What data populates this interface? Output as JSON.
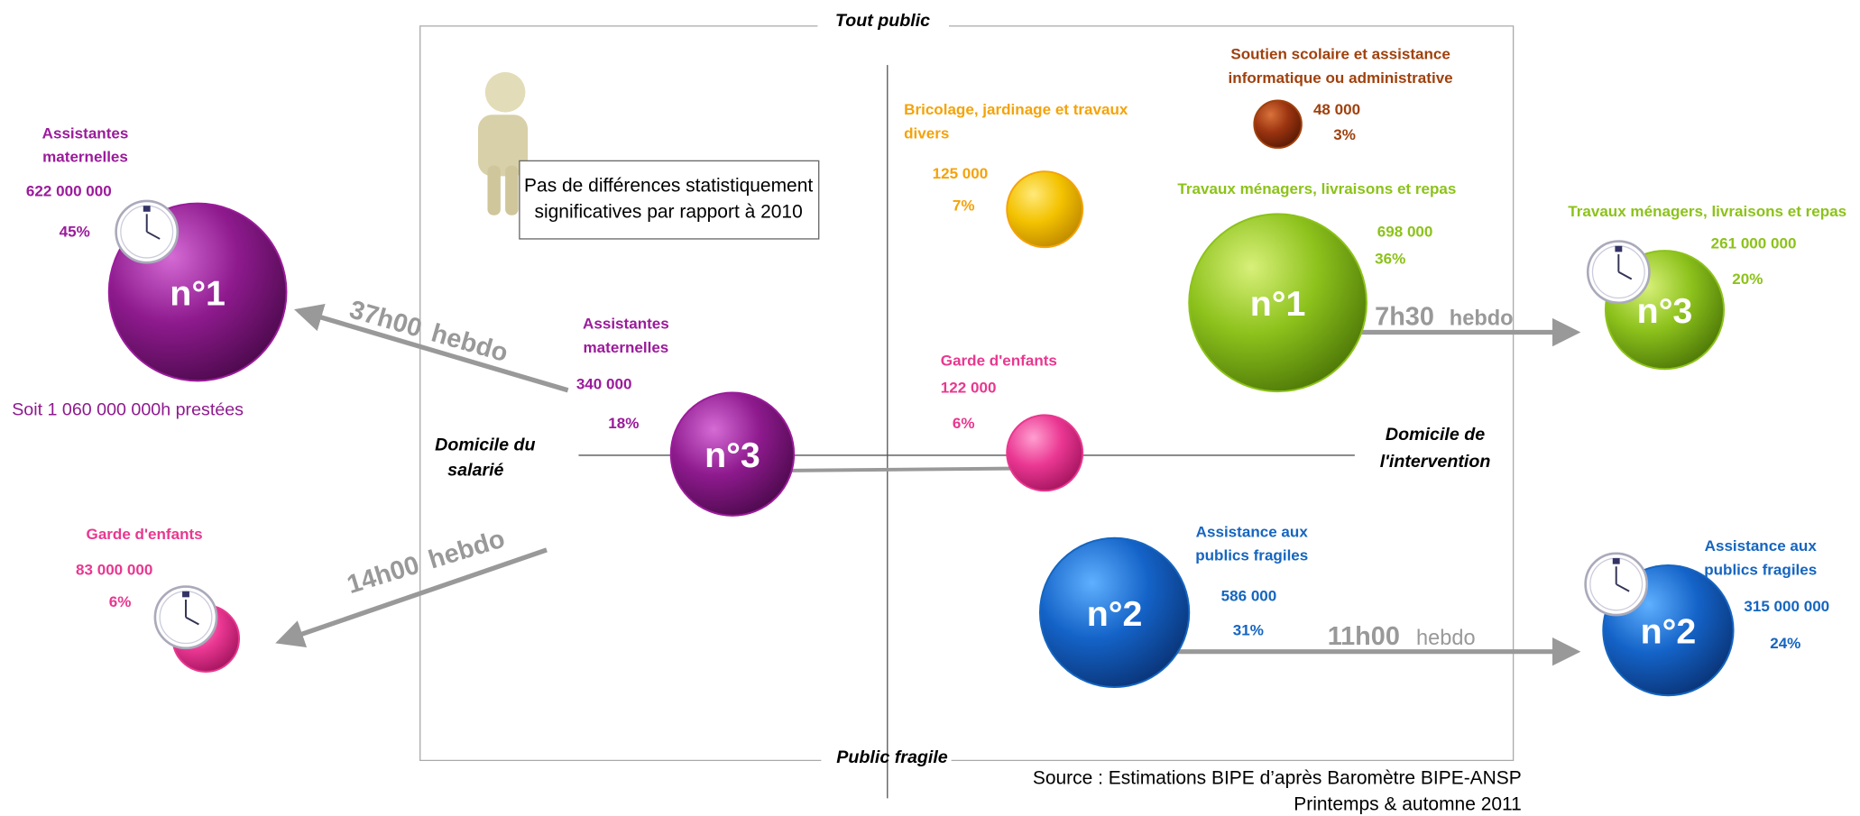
{
  "axes": {
    "top": "Tout public",
    "bottom": "Public fragile",
    "left": [
      "Domicile du",
      "salarié"
    ],
    "right": [
      "Domicile de",
      "l'intervention"
    ]
  },
  "note": [
    "Pas de différences statistiquement",
    "significatives par rapport à 2010"
  ],
  "source": [
    "Source : Estimations BIPE d’après Baromètre BIPE-ANSP",
    "Printemps & automne  2011"
  ],
  "total_hours": "Soit 1 060 000 000h prestées",
  "bubbles": [
    {
      "label": [
        "Assistantes",
        "maternelles"
      ],
      "count": "340 000",
      "share": "18%",
      "rank": "n°3"
    },
    {
      "label": [
        "Garde d'enfants"
      ],
      "count": "122 000",
      "share": "6%"
    },
    {
      "label": [
        "Bricolage, jardinage et travaux",
        "divers"
      ],
      "count": "125 000",
      "share": "7%"
    },
    {
      "label": [
        "Soutien scolaire et assistance",
        "informatique ou administrative"
      ],
      "count": "48 000",
      "share": "3%"
    },
    {
      "label": [
        "Travaux ménagers, livraisons et repas"
      ],
      "count": "698 000",
      "share": "36%",
      "rank": "n°1"
    },
    {
      "label": [
        "Assistance aux",
        "publics fragiles"
      ],
      "count": "586 000",
      "share": "31%",
      "rank": "n°2"
    }
  ],
  "outer_bubbles": [
    {
      "label": [
        "Assistantes",
        "maternelles"
      ],
      "count": "622 000 000",
      "share": "45%",
      "rank": "n°1"
    },
    {
      "label": [
        "Garde d'enfants"
      ],
      "count": "83 000 000",
      "share": "6%"
    },
    {
      "label": [
        "Travaux ménagers, livraisons et repas"
      ],
      "count": "261 000 000",
      "share": "20%",
      "rank": "n°3"
    },
    {
      "label": [
        "Assistance aux",
        "publics fragiles"
      ],
      "count": "315 000 000",
      "share": "24%",
      "rank": "n°2"
    }
  ],
  "arrows": [
    {
      "hours": "37h00",
      "unit": "hebdo"
    },
    {
      "hours": "14h00",
      "unit": "hebdo"
    },
    {
      "hours": "7h30",
      "unit": "hebdo"
    },
    {
      "hours": "11h00",
      "unit": "hebdo"
    }
  ]
}
